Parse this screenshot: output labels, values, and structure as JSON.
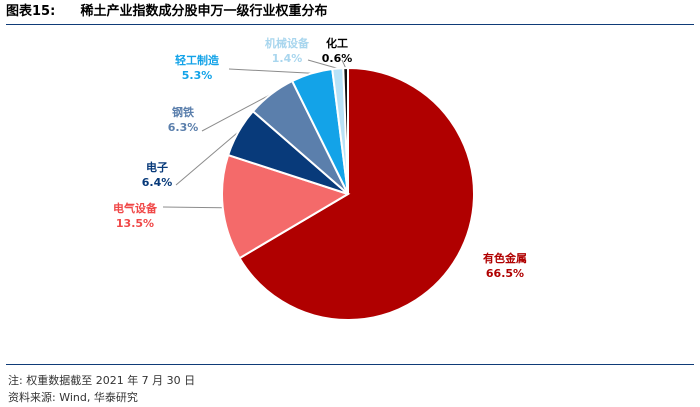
{
  "header": {
    "label": "图表15:",
    "title": "稀土产业指数成分股申万一级行业权重分布"
  },
  "footer": {
    "note": "注: 权重数据截至 2021 年 7 月 30 日",
    "source": "资料来源: Wind, 华泰研究"
  },
  "chart_data": {
    "type": "pie",
    "title": "",
    "start_angle_deg": 0,
    "direction": "clockwise",
    "slices": [
      {
        "label": "有色金属",
        "value": 66.5,
        "value_label": "66.5%",
        "color": "#b00000",
        "label_color": "#b00000"
      },
      {
        "label": "电气设备",
        "value": 13.5,
        "value_label": "13.5%",
        "color": "#f46a6a",
        "label_color": "#f04848"
      },
      {
        "label": "电子",
        "value": 6.4,
        "value_label": "6.4%",
        "color": "#083a7a",
        "label_color": "#083a7a"
      },
      {
        "label": "钢铁",
        "value": 6.3,
        "value_label": "6.3%",
        "color": "#5b7fac",
        "label_color": "#5b7fac"
      },
      {
        "label": "轻工制造",
        "value": 5.3,
        "value_label": "5.3%",
        "color": "#13a3e8",
        "label_color": "#13a3e8"
      },
      {
        "label": "机械设备",
        "value": 1.4,
        "value_label": "1.4%",
        "color": "#b9e2f7",
        "label_color": "#a9d6ee"
      },
      {
        "label": "化工",
        "value": 0.6,
        "value_label": "0.6%",
        "color": "#111111",
        "label_color": "#000000"
      }
    ]
  }
}
